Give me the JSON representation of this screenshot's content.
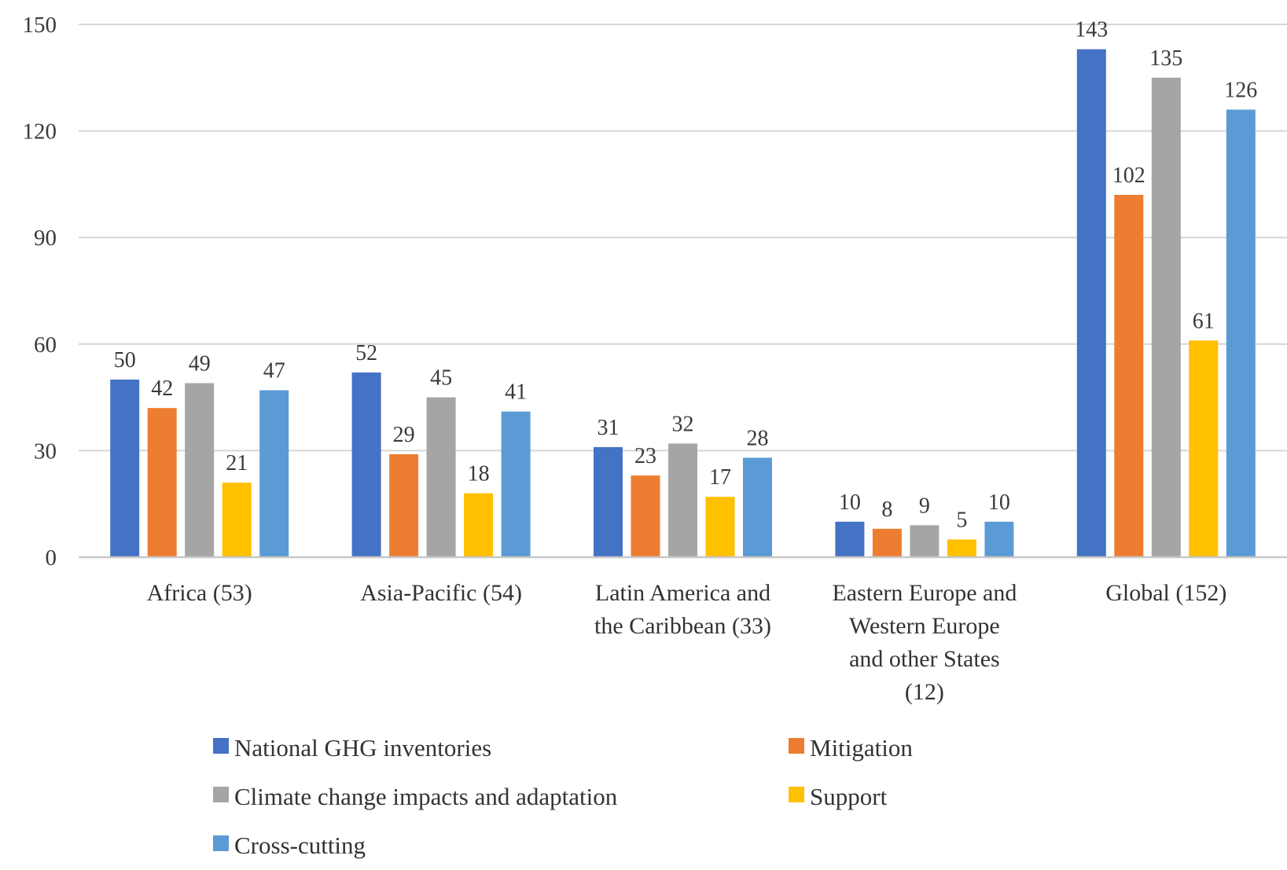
{
  "chart_data": {
    "type": "bar",
    "title": "",
    "xlabel": "",
    "ylabel": "",
    "ylim": [
      0,
      150
    ],
    "yticks": [
      0,
      30,
      60,
      90,
      120,
      150
    ],
    "grid": true,
    "legend_position": "bottom",
    "data_labels": true,
    "categories": [
      [
        "Africa (53)"
      ],
      [
        "Asia-Pacific (54)"
      ],
      [
        "Latin America and",
        "the Caribbean (33)"
      ],
      [
        "Eastern Europe and",
        "Western Europe",
        "and other States",
        "(12)"
      ],
      [
        "Global (152)"
      ]
    ],
    "series": [
      {
        "name": "National GHG inventories",
        "color": "#4472C4",
        "values": [
          50,
          52,
          31,
          10,
          143
        ]
      },
      {
        "name": "Mitigation",
        "color": "#ED7D31",
        "values": [
          42,
          29,
          23,
          8,
          102
        ]
      },
      {
        "name": "Climate change impacts and adaptation",
        "color": "#A5A5A5",
        "values": [
          49,
          45,
          32,
          9,
          135
        ]
      },
      {
        "name": "Support",
        "color": "#FFC000",
        "values": [
          21,
          18,
          17,
          5,
          61
        ]
      },
      {
        "name": "Cross-cutting",
        "color": "#5B9BD5",
        "values": [
          47,
          41,
          28,
          10,
          126
        ]
      }
    ]
  }
}
